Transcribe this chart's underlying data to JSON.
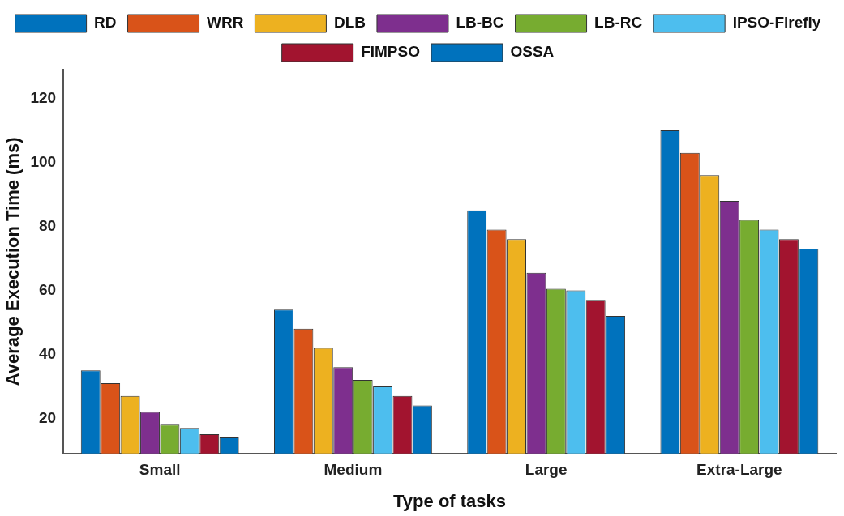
{
  "chart_data": {
    "type": "bar",
    "xlabel": "Type of tasks",
    "ylabel": "Average Execution Time (ms)",
    "categories": [
      "Small",
      "Medium",
      "Large",
      "Extra-Large"
    ],
    "series": [
      {
        "name": "RD",
        "color": "#0072bd",
        "values": [
          35,
          54,
          85,
          110
        ]
      },
      {
        "name": "WRR",
        "color": "#d95319",
        "values": [
          31,
          48,
          79,
          103
        ]
      },
      {
        "name": "DLB",
        "color": "#edb120",
        "values": [
          27,
          42,
          76,
          96
        ]
      },
      {
        "name": "LB-BC",
        "color": "#7e2f8e",
        "values": [
          22,
          36,
          65.5,
          88
        ]
      },
      {
        "name": "LB-RC",
        "color": "#77ac30",
        "values": [
          18,
          32,
          60.5,
          82
        ]
      },
      {
        "name": "IPSO-Firefly",
        "color": "#4dbeee",
        "values": [
          17,
          30,
          60,
          79
        ]
      },
      {
        "name": "FIMPSO",
        "color": "#a2142f",
        "values": [
          15,
          27,
          57,
          76
        ]
      },
      {
        "name": "OSSA",
        "color": "#0072bd",
        "values": [
          14,
          24,
          52,
          73
        ]
      }
    ],
    "ylim": [
      9,
      129
    ],
    "yticks": [
      20,
      40,
      60,
      80,
      100,
      120
    ],
    "grid": false,
    "legend": "top"
  }
}
